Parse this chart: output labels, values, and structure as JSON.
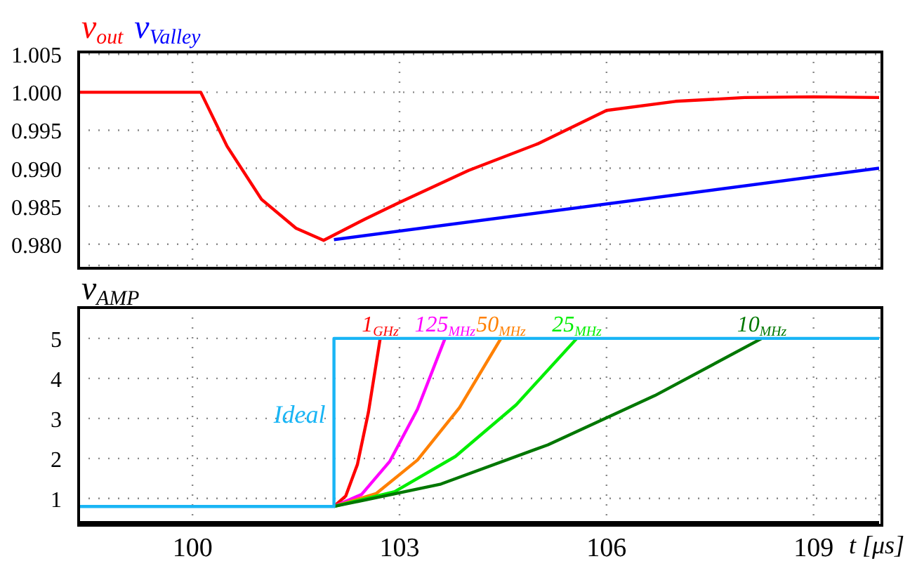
{
  "chart_data": [
    {
      "type": "line",
      "xlim": [
        98.35,
        109.95
      ],
      "xticks": [
        100,
        103,
        106,
        109
      ],
      "ylim": [
        0.9772,
        1.0053
      ],
      "yticks": [
        1.005,
        {
          "value": 1.0,
          "label": "1.000"
        },
        0.995,
        {
          "value": 0.99,
          "label": "0.990"
        },
        0.985,
        {
          "value": 0.98,
          "label": "0.980"
        }
      ],
      "grid": true,
      "legend": "top left",
      "tick_labels": "y",
      "series": [
        {
          "name": "v$_{out}$",
          "color": "#ff0000",
          "x": [
            98.35,
            100.12,
            100.5,
            101,
            101.5,
            101.9,
            102.5,
            103,
            104,
            105,
            106,
            107,
            108,
            109,
            109.95
          ],
          "values": [
            1.0,
            1.0,
            0.9929,
            0.9859,
            0.9821,
            0.9805,
            0.9833,
            0.9855,
            0.9897,
            0.9932,
            0.9976,
            0.9988,
            0.9993,
            0.9994,
            0.9993
          ]
        },
        {
          "name": "v$_{Valley}$",
          "color": "#0000ff",
          "x": [
            102.05,
            109.95
          ],
          "values": [
            0.9806,
            0.99
          ]
        }
      ]
    },
    {
      "type": "line",
      "xlim": [
        98.35,
        109.95
      ],
      "xticks": [
        100,
        103,
        106,
        109
      ],
      "xlabel": "t [μs]",
      "ylabel": "v$_{AMP}$",
      "ylim": [
        0.4,
        5.77
      ],
      "yticks": [
        1,
        2,
        3,
        4,
        5
      ],
      "grid": true,
      "legend": false,
      "series": [
        {
          "name": "1$_{GHz}$",
          "color": "#ff0000",
          "x": [
            102.05,
            102.22,
            102.39,
            102.55,
            102.72
          ],
          "values": [
            0.8,
            1.06,
            1.85,
            3.16,
            5.0
          ]
        },
        {
          "name": "125$_{MHz}$",
          "color": "#ff00ff",
          "x": [
            102.05,
            102.45,
            102.86,
            103.26,
            103.66
          ],
          "values": [
            0.8,
            1.1,
            1.93,
            3.23,
            5.0
          ]
        },
        {
          "name": "50$_{MHz}$",
          "color": "#ff8000",
          "x": [
            102.05,
            102.66,
            103.26,
            103.87,
            104.47
          ],
          "values": [
            0.8,
            1.12,
            1.96,
            3.27,
            5.0
          ]
        },
        {
          "name": "25$_{MHz}$",
          "color": "#00ee00",
          "x": [
            102.05,
            102.93,
            103.81,
            104.69,
            105.57
          ],
          "values": [
            0.8,
            1.17,
            2.05,
            3.34,
            5.0
          ]
        },
        {
          "name": "10$_{MHz}$",
          "color": "#007700",
          "x": [
            102.05,
            103.6,
            105.15,
            106.7,
            108.25
          ],
          "values": [
            0.8,
            1.36,
            2.34,
            3.57,
            5.0
          ]
        },
        {
          "name": "Ideal",
          "color": "#19b5f5",
          "x": [
            98.35,
            102.05,
            102.05,
            109.95
          ],
          "values": [
            0.8,
            0.8,
            5.0,
            5.0
          ]
        }
      ]
    }
  ]
}
